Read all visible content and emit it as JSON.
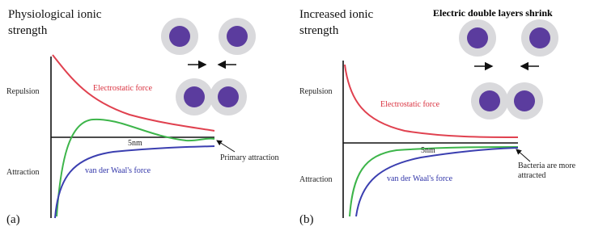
{
  "panels": [
    {
      "label": "(a)",
      "title": [
        "Physiological ionic",
        "strength"
      ],
      "repulsion": "Repulsion",
      "attraction": "Attraction",
      "electrostatic": "Electrostatic force",
      "vdw": "van der Waal's force",
      "distance": "5nm",
      "note": [
        "Primary attraction"
      ]
    },
    {
      "label": "(b)",
      "title": [
        "Increased ionic",
        "strength"
      ],
      "caption": "Electric double layers shrink",
      "repulsion": "Repulsion",
      "attraction": "Attraction",
      "electrostatic": "Electrostatic force",
      "vdw": "van der Waal's force",
      "distance": "5nm",
      "note": [
        "Bacteria are more",
        "attracted"
      ]
    }
  ]
}
